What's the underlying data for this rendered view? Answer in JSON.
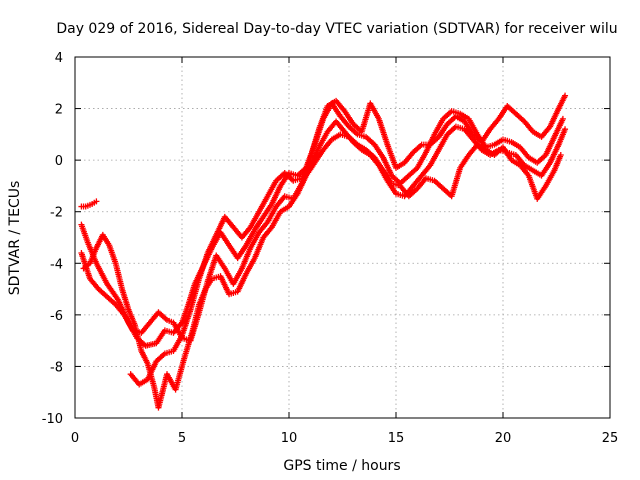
{
  "chart_data": {
    "type": "scatter",
    "title": "Day 029 of 2016, Sidereal Day-to-day VTEC variation (SDTVAR) for receiver wilu",
    "xlabel": "GPS time / hours",
    "ylabel": "SDTVAR / TECUs",
    "xlim": [
      0,
      25
    ],
    "ylim": [
      -10,
      4
    ],
    "xticks": [
      0,
      5,
      10,
      15,
      20,
      25
    ],
    "yticks": [
      -10,
      -8,
      -6,
      -4,
      -2,
      0,
      2,
      4
    ],
    "grid": true,
    "marker": "plus",
    "color": "#ff0000",
    "series": [
      {
        "points": [
          [
            0.3,
            -2.5
          ],
          [
            0.6,
            -3.2
          ],
          [
            1.0,
            -4.0
          ],
          [
            1.5,
            -4.8
          ],
          [
            2.0,
            -5.4
          ],
          [
            2.5,
            -6.3
          ],
          [
            2.9,
            -6.9
          ],
          [
            3.3,
            -7.2
          ],
          [
            3.8,
            -7.1
          ],
          [
            4.2,
            -6.6
          ],
          [
            4.6,
            -6.7
          ],
          [
            5.0,
            -6.3
          ],
          [
            5.3,
            -5.6
          ],
          [
            5.6,
            -4.8
          ],
          [
            6.0,
            -4.1
          ],
          [
            6.4,
            -3.4
          ],
          [
            6.8,
            -2.8
          ],
          [
            7.2,
            -3.3
          ],
          [
            7.6,
            -3.8
          ],
          [
            8.0,
            -3.3
          ],
          [
            8.4,
            -2.7
          ],
          [
            8.8,
            -2.2
          ],
          [
            9.2,
            -1.7
          ],
          [
            9.6,
            -1.0
          ],
          [
            10.0,
            -0.5
          ],
          [
            10.4,
            -0.6
          ],
          [
            10.8,
            -0.3
          ],
          [
            11.2,
            0.6
          ],
          [
            11.6,
            1.6
          ],
          [
            12.0,
            2.2
          ],
          [
            12.4,
            1.7
          ],
          [
            12.8,
            1.3
          ],
          [
            13.2,
            1.0
          ],
          [
            13.6,
            0.9
          ],
          [
            14.0,
            0.6
          ],
          [
            14.4,
            0.1
          ],
          [
            14.8,
            -0.6
          ],
          [
            15.2,
            -0.9
          ],
          [
            15.6,
            -0.6
          ],
          [
            16.0,
            -0.3
          ],
          [
            16.4,
            0.3
          ],
          [
            16.8,
            1.0
          ],
          [
            17.2,
            1.6
          ],
          [
            17.6,
            1.9
          ],
          [
            18.0,
            1.8
          ],
          [
            18.4,
            1.6
          ],
          [
            18.8,
            1.0
          ],
          [
            19.2,
            0.5
          ],
          [
            19.6,
            0.6
          ],
          [
            20.0,
            0.8
          ],
          [
            20.4,
            0.7
          ],
          [
            20.8,
            0.5
          ],
          [
            21.2,
            0.1
          ],
          [
            21.6,
            -0.1
          ],
          [
            22.0,
            0.2
          ],
          [
            22.4,
            0.9
          ],
          [
            22.8,
            1.6
          ]
        ]
      },
      {
        "points": [
          [
            0.3,
            -3.6
          ],
          [
            0.7,
            -4.6
          ],
          [
            1.1,
            -5.0
          ],
          [
            1.5,
            -5.3
          ],
          [
            1.9,
            -5.6
          ],
          [
            2.3,
            -6.0
          ],
          [
            2.7,
            -6.6
          ],
          [
            3.1,
            -6.7
          ],
          [
            3.5,
            -6.3
          ],
          [
            3.9,
            -5.9
          ],
          [
            4.3,
            -6.2
          ],
          [
            4.6,
            -6.3
          ],
          [
            5.0,
            -6.9
          ],
          [
            5.4,
            -7.0
          ],
          [
            5.8,
            -5.9
          ],
          [
            6.2,
            -4.7
          ],
          [
            6.6,
            -3.7
          ],
          [
            7.0,
            -4.2
          ],
          [
            7.4,
            -4.8
          ],
          [
            7.8,
            -4.2
          ],
          [
            8.2,
            -3.4
          ],
          [
            8.6,
            -2.8
          ],
          [
            9.0,
            -2.4
          ],
          [
            9.4,
            -1.8
          ],
          [
            9.8,
            -1.4
          ],
          [
            10.2,
            -1.5
          ],
          [
            10.6,
            -0.9
          ],
          [
            11.0,
            -0.2
          ],
          [
            11.4,
            0.5
          ],
          [
            11.8,
            1.1
          ],
          [
            12.2,
            1.5
          ],
          [
            12.6,
            1.1
          ],
          [
            13.0,
            0.7
          ],
          [
            13.4,
            0.4
          ],
          [
            13.8,
            0.2
          ],
          [
            14.2,
            -0.2
          ],
          [
            14.6,
            -0.8
          ],
          [
            15.0,
            -1.3
          ],
          [
            15.4,
            -1.4
          ],
          [
            15.8,
            -1.0
          ],
          [
            16.2,
            -0.6
          ],
          [
            16.6,
            -0.2
          ],
          [
            17.0,
            0.4
          ],
          [
            17.4,
            1.0
          ],
          [
            17.8,
            1.3
          ],
          [
            18.2,
            1.2
          ],
          [
            18.6,
            0.8
          ],
          [
            19.0,
            0.4
          ],
          [
            19.4,
            0.2
          ],
          [
            19.8,
            0.4
          ],
          [
            20.2,
            0.3
          ],
          [
            20.6,
            0.2
          ],
          [
            21.0,
            -0.2
          ],
          [
            21.4,
            -0.4
          ],
          [
            21.8,
            -0.6
          ],
          [
            22.2,
            -0.1
          ],
          [
            22.6,
            0.6
          ],
          [
            22.9,
            1.2
          ]
        ]
      },
      {
        "points": [
          [
            2.6,
            -8.3
          ],
          [
            3.0,
            -8.7
          ],
          [
            3.4,
            -8.5
          ],
          [
            3.8,
            -7.8
          ],
          [
            4.2,
            -7.5
          ],
          [
            4.6,
            -7.4
          ],
          [
            5.0,
            -6.8
          ],
          [
            5.4,
            -5.8
          ],
          [
            5.8,
            -4.6
          ],
          [
            6.2,
            -3.6
          ],
          [
            6.6,
            -2.9
          ],
          [
            7.0,
            -2.2
          ],
          [
            7.4,
            -2.6
          ],
          [
            7.8,
            -3.0
          ],
          [
            8.2,
            -2.6
          ],
          [
            8.6,
            -2.0
          ],
          [
            9.0,
            -1.4
          ],
          [
            9.4,
            -0.8
          ],
          [
            9.8,
            -0.5
          ],
          [
            10.2,
            -0.8
          ],
          [
            10.6,
            -0.7
          ],
          [
            11.0,
            0.1
          ],
          [
            11.4,
            1.2
          ],
          [
            11.8,
            2.1
          ],
          [
            12.2,
            2.3
          ],
          [
            12.6,
            1.9
          ],
          [
            13.0,
            1.4
          ],
          [
            13.4,
            1.1
          ],
          [
            13.8,
            2.2
          ],
          [
            14.2,
            1.6
          ],
          [
            14.6,
            0.6
          ],
          [
            15.0,
            -0.3
          ],
          [
            15.4,
            -0.1
          ],
          [
            15.8,
            0.3
          ],
          [
            16.2,
            0.6
          ],
          [
            16.6,
            0.6
          ],
          [
            17.0,
            0.9
          ],
          [
            17.4,
            1.4
          ],
          [
            17.8,
            1.7
          ],
          [
            18.2,
            1.5
          ],
          [
            18.6,
            1.0
          ],
          [
            19.0,
            0.7
          ],
          [
            19.4,
            1.2
          ],
          [
            19.8,
            1.6
          ],
          [
            20.2,
            2.1
          ],
          [
            20.6,
            1.8
          ],
          [
            21.0,
            1.5
          ],
          [
            21.4,
            1.1
          ],
          [
            21.8,
            0.9
          ],
          [
            22.2,
            1.3
          ],
          [
            22.6,
            2.0
          ],
          [
            22.9,
            2.5
          ]
        ]
      },
      {
        "points": [
          [
            0.4,
            -4.2
          ],
          [
            0.7,
            -4.0
          ],
          [
            1.0,
            -3.4
          ],
          [
            1.3,
            -2.9
          ],
          [
            1.6,
            -3.3
          ],
          [
            1.9,
            -4.0
          ],
          [
            2.2,
            -5.0
          ],
          [
            2.5,
            -5.8
          ],
          [
            2.8,
            -6.4
          ],
          [
            3.1,
            -7.4
          ],
          [
            3.4,
            -7.9
          ],
          [
            3.7,
            -8.8
          ],
          [
            3.9,
            -9.6
          ],
          [
            4.3,
            -8.3
          ],
          [
            4.7,
            -8.9
          ],
          [
            5.1,
            -7.7
          ],
          [
            5.5,
            -6.6
          ],
          [
            5.8,
            -5.6
          ],
          [
            6.1,
            -5.0
          ],
          [
            6.4,
            -4.6
          ],
          [
            6.8,
            -4.5
          ],
          [
            7.2,
            -5.2
          ],
          [
            7.6,
            -5.1
          ],
          [
            8.0,
            -4.4
          ],
          [
            8.4,
            -3.8
          ],
          [
            8.8,
            -3.0
          ],
          [
            9.2,
            -2.6
          ],
          [
            9.6,
            -2.0
          ],
          [
            10.0,
            -1.8
          ],
          [
            10.4,
            -1.3
          ],
          [
            10.8,
            -0.6
          ],
          [
            11.2,
            -0.1
          ],
          [
            11.6,
            0.4
          ],
          [
            12.0,
            0.8
          ],
          [
            12.4,
            1.0
          ],
          [
            12.8,
            0.9
          ],
          [
            13.2,
            0.6
          ],
          [
            13.6,
            0.4
          ],
          [
            14.0,
            0.1
          ],
          [
            14.4,
            -0.4
          ],
          [
            14.8,
            -0.9
          ],
          [
            15.2,
            -1.0
          ],
          [
            15.6,
            -1.4
          ],
          [
            16.0,
            -1.1
          ],
          [
            16.4,
            -0.7
          ],
          [
            16.8,
            -0.8
          ],
          [
            17.2,
            -1.1
          ],
          [
            17.6,
            -1.4
          ],
          [
            18.0,
            -0.3
          ],
          [
            18.4,
            0.2
          ],
          [
            18.8,
            0.6
          ],
          [
            19.2,
            0.4
          ],
          [
            19.6,
            0.2
          ],
          [
            20.0,
            0.5
          ],
          [
            20.4,
            0.0
          ],
          [
            20.8,
            -0.2
          ],
          [
            21.2,
            -0.6
          ],
          [
            21.6,
            -1.5
          ],
          [
            22.0,
            -1.0
          ],
          [
            22.4,
            -0.4
          ],
          [
            22.7,
            0.2
          ]
        ]
      },
      {
        "points": [
          [
            0.3,
            -1.8
          ],
          [
            0.5,
            -1.8
          ],
          [
            0.8,
            -1.7
          ],
          [
            1.0,
            -1.6
          ]
        ]
      }
    ]
  }
}
